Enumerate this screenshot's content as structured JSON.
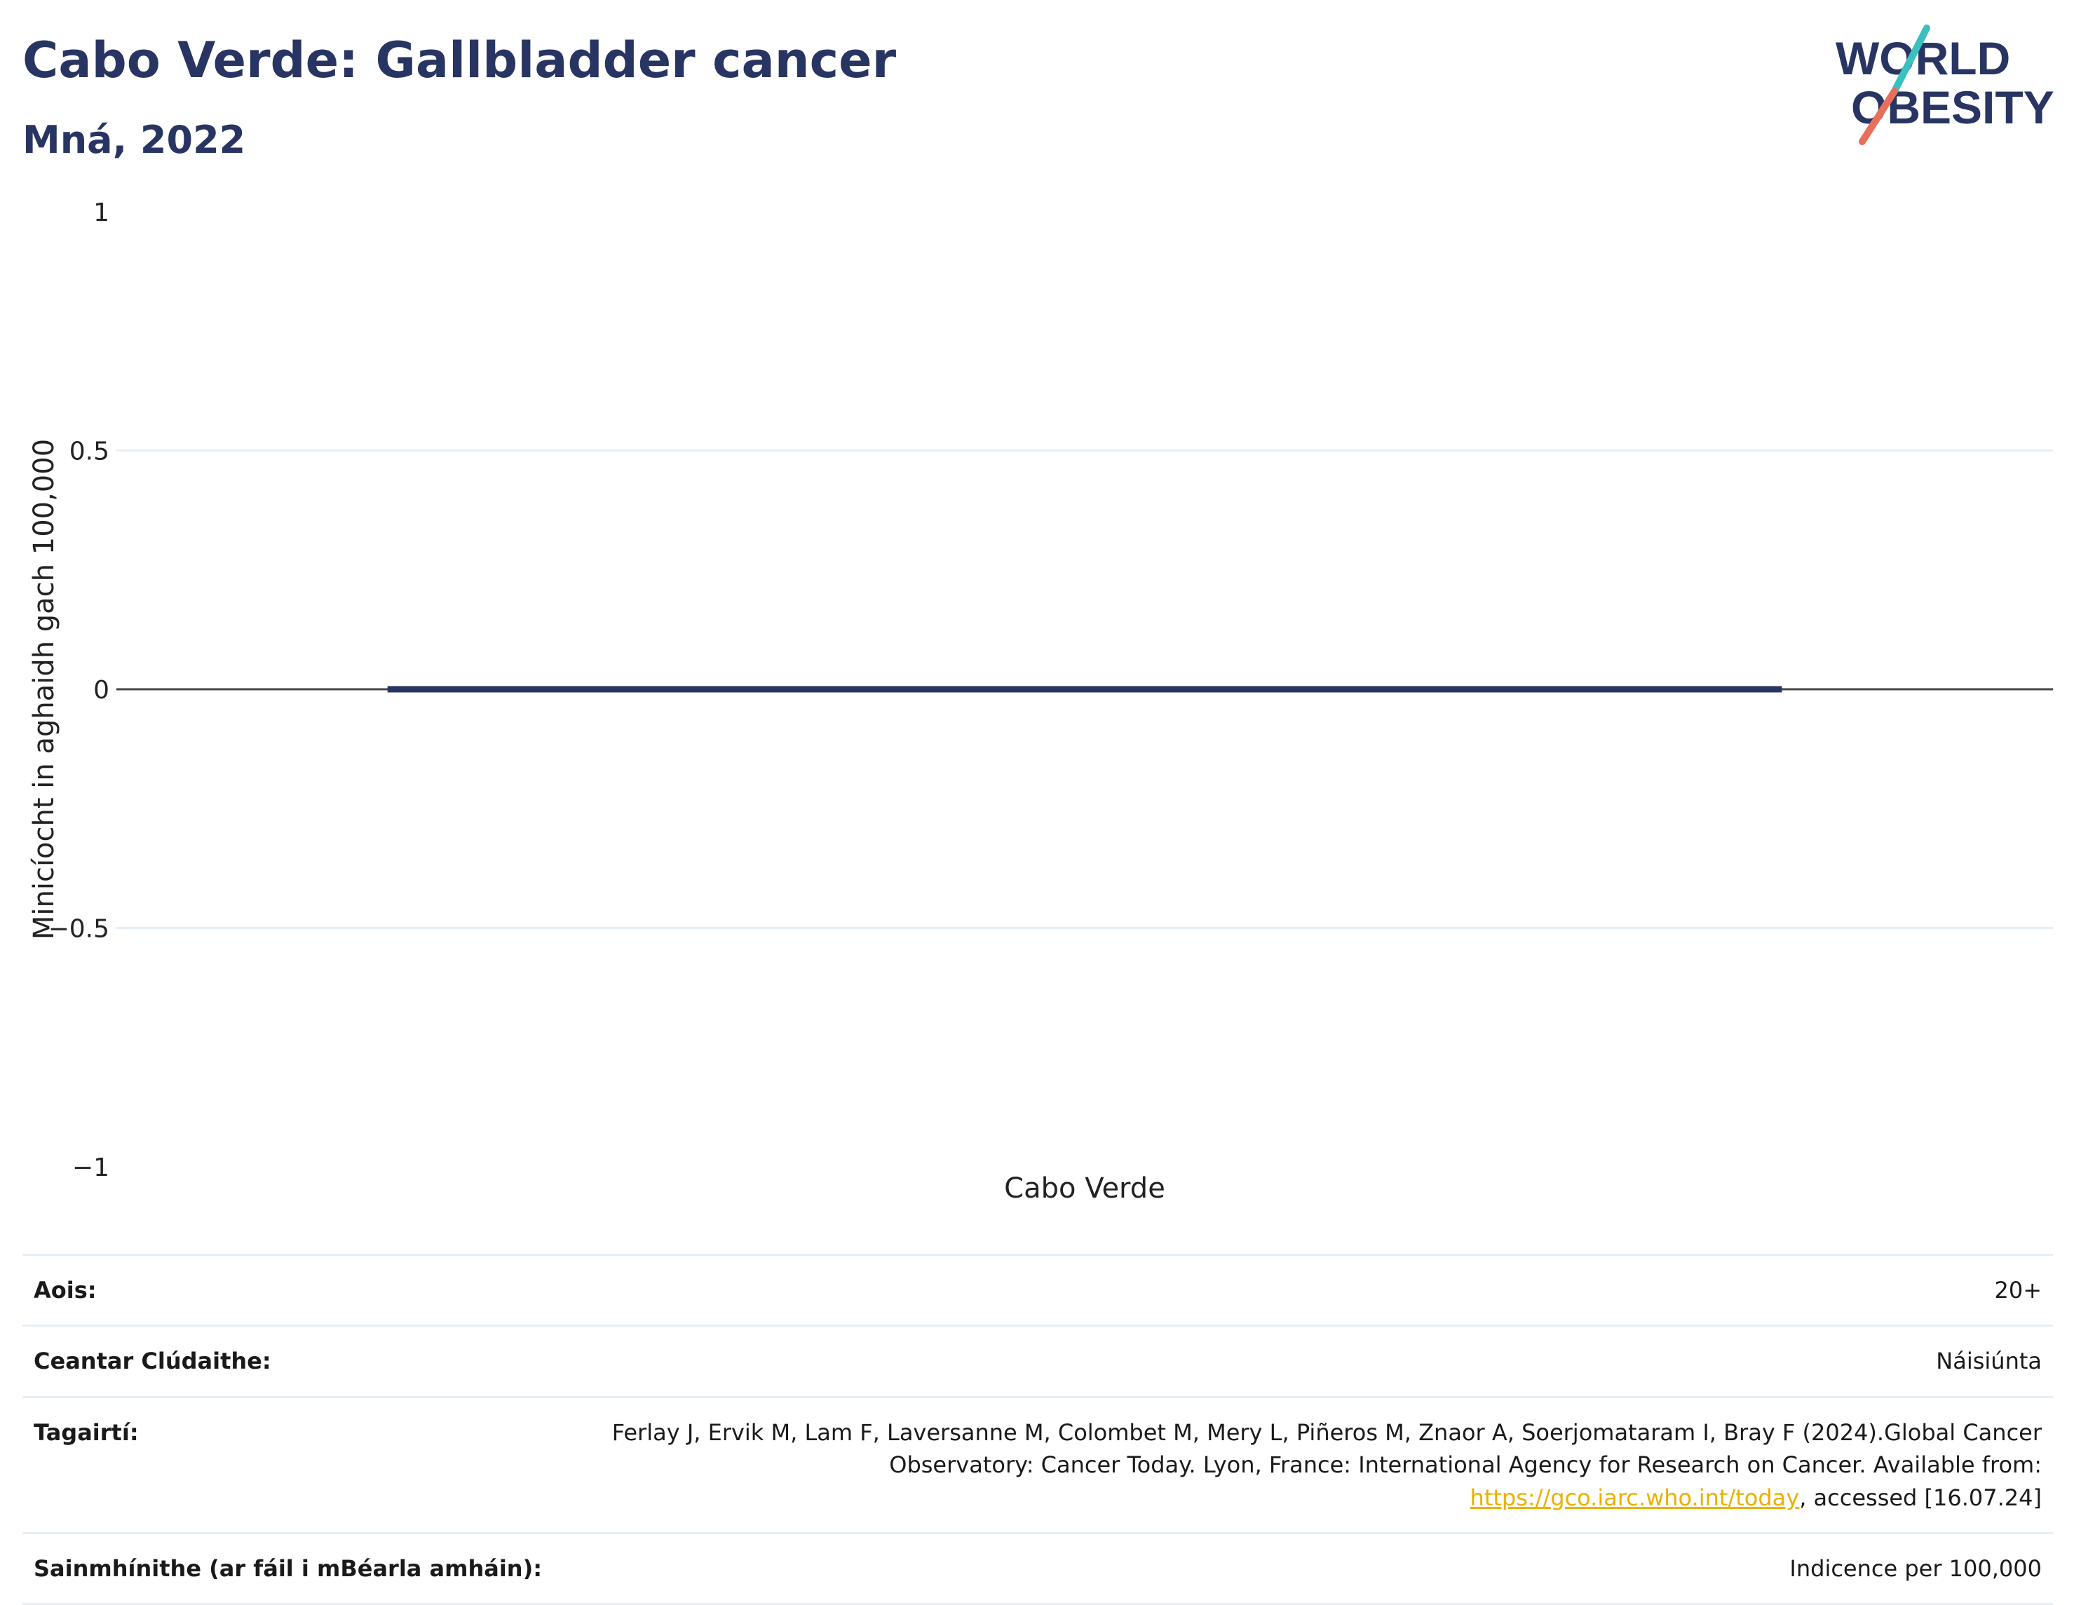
{
  "header": {
    "title": "Cabo Verde: Gallbladder cancer",
    "subtitle": "Mná, 2022"
  },
  "logo": {
    "line1": "WORLD",
    "line2": "OBESITY",
    "colors": {
      "text": "#283562",
      "slash_top": "#3bbfbf",
      "slash_bottom": "#e8705a"
    }
  },
  "chart_data": {
    "type": "bar",
    "title": "",
    "xlabel": "",
    "ylabel": "Minicíocht in aghaidh gach 100,000",
    "categories": [
      "Cabo Verde"
    ],
    "series": [
      {
        "values": [
          0
        ]
      }
    ],
    "ylim": [
      -1,
      1
    ],
    "yticks": [
      1,
      0.5,
      0,
      -0.5,
      -1
    ],
    "ytick_labels": [
      "1",
      "0.5",
      "0",
      "−0.5",
      "−1"
    ],
    "grid": true,
    "legend": "none",
    "colors": {
      "bar": "#283562",
      "grid": "#e6eef6",
      "zeroline": "#444444"
    }
  },
  "meta": {
    "age_label": "Aois:",
    "age_value": "20+",
    "area_label": "Ceantar Clúdaithe:",
    "area_value": "Náisiúnta",
    "ref_label": "Tagairtí:",
    "ref_text_1": "Ferlay J, Ervik M, Lam F, Laversanne M, Colombet M, Mery L, Piñeros M, Znaor A, Soerjomataram I, Bray F (2024).Global Cancer Observatory: Cancer Today. Lyon, France: International Agency for Research on Cancer. Available from: ",
    "ref_link": "https://gco.iarc.who.int/today",
    "ref_text_2": ", accessed [16.07.24]",
    "def_label": "Sainmhínithe (ar fáil i mBéarla amháin):",
    "def_value": "Indicence per 100,000"
  }
}
